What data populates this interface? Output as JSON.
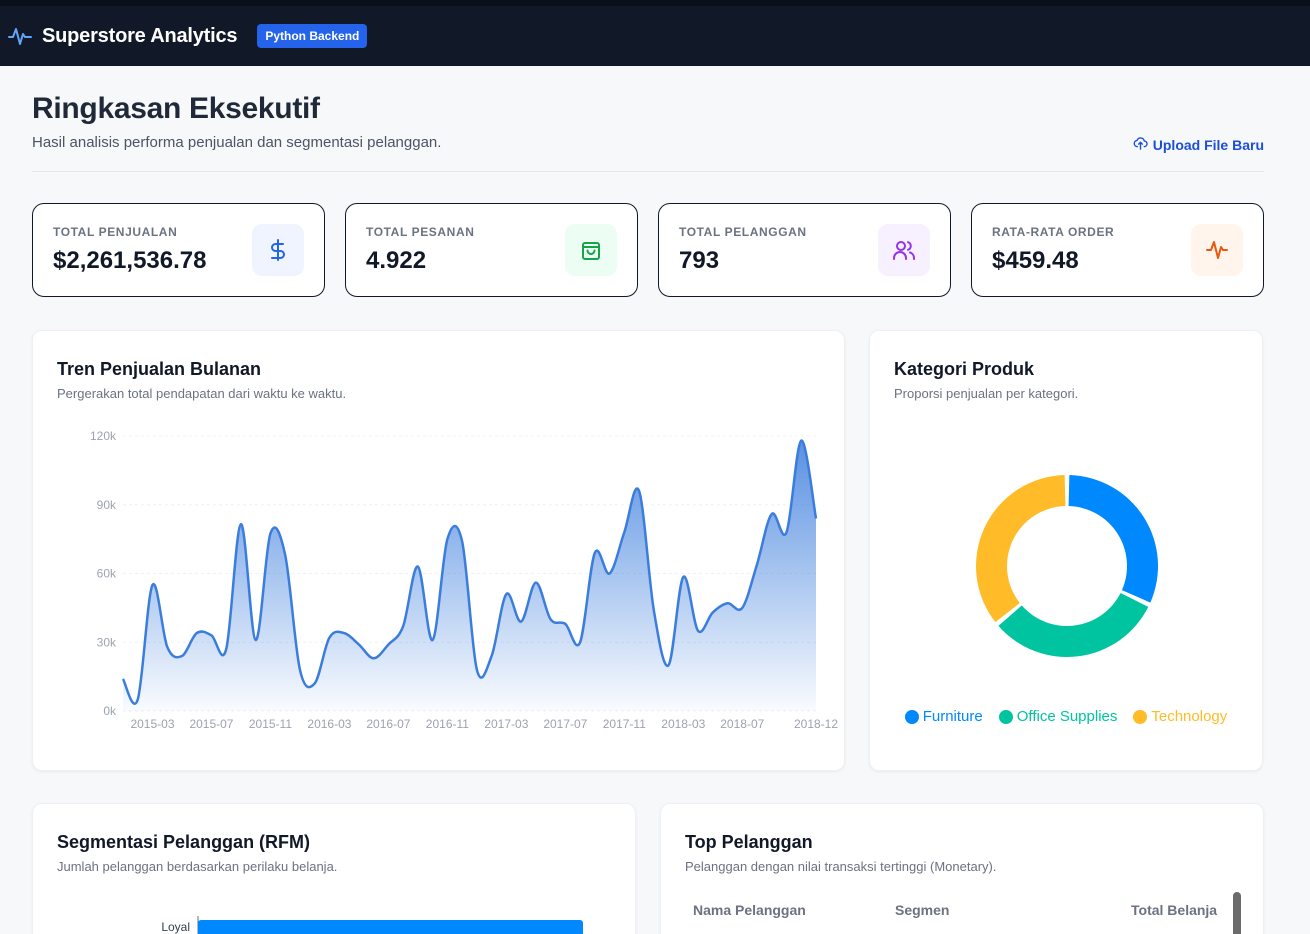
{
  "app": {
    "title": "Superstore Analytics",
    "badge": "Python Backend",
    "logo_icon": "activity-icon"
  },
  "header": {
    "title": "Ringkasan Eksekutif",
    "subtitle": "Hasil analisis performa penjualan dan segmentasi pelanggan.",
    "upload_label": "Upload File Baru",
    "upload_icon": "cloud-upload-icon"
  },
  "kpis": [
    {
      "label": "TOTAL PENJUALAN",
      "value": "$2,261,536.78",
      "icon": "dollar-icon",
      "icon_color": "#2563eb",
      "icon_bg": "#eff4ff"
    },
    {
      "label": "TOTAL PESANAN",
      "value": "4.922",
      "icon": "shopping-bag-icon",
      "icon_color": "#16a34a",
      "icon_bg": "#ecfdf3"
    },
    {
      "label": "TOTAL PELANGGAN",
      "value": "793",
      "icon": "users-icon",
      "icon_color": "#9333ea",
      "icon_bg": "#f7f0ff"
    },
    {
      "label": "RATA-RATA ORDER",
      "value": "$459.48",
      "icon": "activity-icon",
      "icon_color": "#ea580c",
      "icon_bg": "#fff5ed"
    }
  ],
  "trend": {
    "title": "Tren Penjualan Bulanan",
    "subtitle": "Pergerakan total pendapatan dari waktu ke waktu."
  },
  "category": {
    "title": "Kategori Produk",
    "subtitle": "Proporsi penjualan per kategori."
  },
  "rfm": {
    "title": "Segmentasi Pelanggan (RFM)",
    "subtitle": "Jumlah pelanggan berdasarkan perilaku belanja."
  },
  "top_customers": {
    "title": "Top Pelanggan",
    "subtitle": "Pelanggan dengan nilai transaksi tertinggi (Monetary).",
    "columns": [
      "Nama Pelanggan",
      "Segmen",
      "Total Belanja"
    ]
  },
  "chart_data": [
    {
      "type": "area",
      "x": [
        "2015-01",
        "2015-02",
        "2015-03",
        "2015-04",
        "2015-05",
        "2015-06",
        "2015-07",
        "2015-08",
        "2015-09",
        "2015-10",
        "2015-11",
        "2015-12",
        "2016-01",
        "2016-02",
        "2016-03",
        "2016-04",
        "2016-05",
        "2016-06",
        "2016-07",
        "2016-08",
        "2016-09",
        "2016-10",
        "2016-11",
        "2016-12",
        "2017-01",
        "2017-02",
        "2017-03",
        "2017-04",
        "2017-05",
        "2017-06",
        "2017-07",
        "2017-08",
        "2017-09",
        "2017-10",
        "2017-11",
        "2017-12",
        "2018-01",
        "2018-02",
        "2018-03",
        "2018-04",
        "2018-05",
        "2018-06",
        "2018-07",
        "2018-08",
        "2018-09",
        "2018-10",
        "2018-11",
        "2018-12"
      ],
      "x_ticks": [
        "2015-03",
        "2015-07",
        "2015-11",
        "2016-03",
        "2016-07",
        "2016-11",
        "2017-03",
        "2017-07",
        "2017-11",
        "2018-03",
        "2018-07",
        "2018-12"
      ],
      "values": [
        14000,
        5000,
        55000,
        28000,
        24000,
        34000,
        33000,
        27000,
        81500,
        31000,
        77500,
        68000,
        18000,
        12000,
        32000,
        34000,
        29000,
        23000,
        29000,
        37000,
        63000,
        31000,
        75000,
        74000,
        18000,
        24000,
        51000,
        39000,
        56000,
        40000,
        38000,
        30000,
        69000,
        60000,
        78000,
        96000,
        44000,
        20000,
        58500,
        35000,
        43000,
        47000,
        45000,
        64000,
        86000,
        78000,
        118000,
        84000
      ],
      "yticks": [
        "0k",
        "30k",
        "60k",
        "90k",
        "120k"
      ],
      "ylim": [
        0,
        120000
      ],
      "color": "#3b7ddd",
      "grid": true
    },
    {
      "type": "pie",
      "categories": [
        "Furniture",
        "Office Supplies",
        "Technology"
      ],
      "values": [
        32,
        32,
        36
      ],
      "colors": [
        "#0088fe",
        "#00c49f",
        "#ffbb28"
      ],
      "legend": "bottom"
    },
    {
      "type": "bar",
      "categories": [
        "Loyal"
      ],
      "values": [
        1
      ],
      "color": "#0088fe"
    }
  ]
}
